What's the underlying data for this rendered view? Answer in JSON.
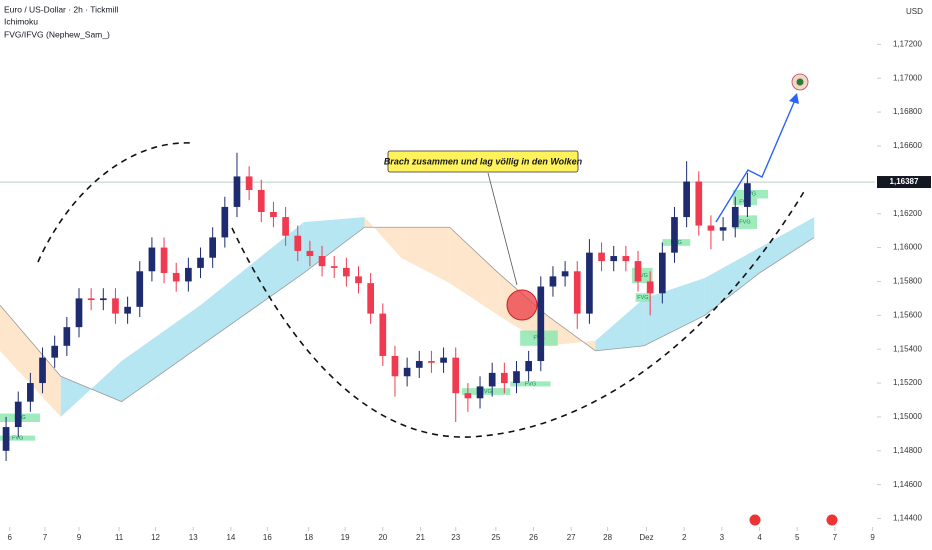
{
  "chart_data": {
    "type": "candlestick",
    "title": "Euro / US-Dollar · 2h · Tickmill",
    "indicators": [
      "Ichimoku",
      "FVG/IFVG (Nephew_Sam_)"
    ],
    "currency": "USD",
    "annotation": "Brach zusammen und lag völlig in den Wolken",
    "up_color": "#1e2b6e",
    "down_color": "#ef3a4f",
    "open": [
      1.148,
      1.1494,
      1.1509,
      1.152,
      1.1535,
      1.1542,
      1.1553,
      1.157,
      1.1569,
      1.157,
      1.1561,
      1.1565,
      1.1586,
      1.16,
      1.1585,
      1.158,
      1.1588,
      1.1594,
      1.1606,
      1.1624,
      1.1642,
      1.1634,
      1.1621,
      1.1618,
      1.1607,
      1.1598,
      1.1595,
      1.1589,
      1.1588,
      1.1583,
      1.1579,
      1.1561,
      1.1536,
      1.1524,
      1.1529,
      1.1533,
      1.1532,
      1.1535,
      1.1514,
      1.1511,
      1.1518,
      1.1526,
      1.152,
      1.1527,
      1.1533,
      1.1577,
      1.1583,
      1.1586,
      1.1561,
      1.1597,
      1.1592,
      1.1595,
      1.1592,
      1.158,
      1.1573,
      1.1597,
      1.1618,
      1.1639,
      1.1613,
      1.161,
      1.1612,
      1.1624
    ],
    "high": [
      1.15,
      1.1515,
      1.1526,
      1.1541,
      1.1548,
      1.1559,
      1.1576,
      1.1576,
      1.1576,
      1.1576,
      1.1571,
      1.1592,
      1.1606,
      1.1606,
      1.1591,
      1.1594,
      1.16,
      1.1612,
      1.163,
      1.1656,
      1.1648,
      1.164,
      1.1627,
      1.1624,
      1.1613,
      1.1604,
      1.1601,
      1.1595,
      1.1594,
      1.1589,
      1.1585,
      1.1567,
      1.1542,
      1.1535,
      1.1539,
      1.1539,
      1.1541,
      1.1541,
      1.152,
      1.1524,
      1.1532,
      1.1532,
      1.1533,
      1.1539,
      1.1583,
      1.1589,
      1.1592,
      1.1592,
      1.1605,
      1.1603,
      1.1601,
      1.1601,
      1.1598,
      1.1586,
      1.1603,
      1.1624,
      1.1651,
      1.1645,
      1.1619,
      1.1618,
      1.163,
      1.1644
    ],
    "low": [
      1.1474,
      1.1488,
      1.1503,
      1.1514,
      1.1529,
      1.1536,
      1.1547,
      1.1563,
      1.1563,
      1.1555,
      1.1555,
      1.1559,
      1.158,
      1.1579,
      1.1574,
      1.1574,
      1.1582,
      1.1588,
      1.16,
      1.1618,
      1.1628,
      1.1615,
      1.1612,
      1.1601,
      1.1592,
      1.1589,
      1.1583,
      1.1582,
      1.1577,
      1.1573,
      1.1555,
      1.153,
      1.1512,
      1.1518,
      1.1523,
      1.1526,
      1.1526,
      1.1497,
      1.1503,
      1.1505,
      1.1512,
      1.1514,
      1.1514,
      1.1521,
      1.1527,
      1.1571,
      1.1577,
      1.1552,
      1.1555,
      1.1586,
      1.1586,
      1.1586,
      1.1574,
      1.156,
      1.1567,
      1.1591,
      1.1612,
      1.1607,
      1.1599,
      1.1604,
      1.1606,
      1.1618
    ],
    "close": [
      1.1494,
      1.1509,
      1.152,
      1.1535,
      1.1542,
      1.1553,
      1.157,
      1.1569,
      1.157,
      1.1561,
      1.1565,
      1.1586,
      1.16,
      1.1585,
      1.158,
      1.1588,
      1.1594,
      1.1606,
      1.1624,
      1.1642,
      1.1634,
      1.1621,
      1.1618,
      1.1607,
      1.1598,
      1.1595,
      1.1589,
      1.1588,
      1.1583,
      1.1579,
      1.1561,
      1.1536,
      1.1524,
      1.1529,
      1.1533,
      1.1532,
      1.1535,
      1.1514,
      1.1511,
      1.1518,
      1.1526,
      1.152,
      1.1527,
      1.1533,
      1.1577,
      1.1583,
      1.1586,
      1.1561,
      1.1597,
      1.1592,
      1.1595,
      1.1592,
      1.158,
      1.1573,
      1.1597,
      1.1618,
      1.1639,
      1.1613,
      1.161,
      1.1612,
      1.1624,
      1.1638
    ],
    "cloud": {
      "x": [
        0,
        5,
        10,
        16.5,
        25,
        30,
        33,
        37,
        41,
        45,
        49,
        53,
        58,
        62.5,
        67
      ],
      "span_a": [
        1.1539,
        1.15,
        1.1533,
        1.1566,
        1.1615,
        1.1618,
        1.1594,
        1.1579,
        1.156,
        1.1542,
        1.1545,
        1.157,
        1.1582,
        1.16,
        1.1618
      ],
      "span_b": [
        1.1566,
        1.1524,
        1.1509,
        1.1542,
        1.1585,
        1.1612,
        1.1612,
        1.1612,
        1.1585,
        1.156,
        1.1539,
        1.1542,
        1.156,
        1.1585,
        1.1606
      ],
      "bull_color": "#b5e6f2",
      "bear_color": "#fde6cb",
      "line_color": "#9a9a9a"
    },
    "fvg_color": "#8ee8b2",
    "fvg": [
      {
        "label": "FVG",
        "x": [
          0,
          3.3
        ],
        "top": 1.1502,
        "bottom": 1.1497
      },
      {
        "label": "FVG",
        "x": [
          0,
          2.9
        ],
        "top": 1.1489,
        "bottom": 1.1486
      },
      {
        "label": "FVG",
        "x": [
          38,
          42
        ],
        "top": 1.1517,
        "bottom": 1.1513
      },
      {
        "label": "FVG",
        "x": [
          42,
          45.3
        ],
        "top": 1.1521,
        "bottom": 1.1518
      },
      {
        "label": "FVG",
        "x": [
          42.8,
          45.9
        ],
        "top": 1.1551,
        "bottom": 1.1542
      },
      {
        "label": "FVG",
        "x": [
          52,
          53.7
        ],
        "top": 1.1588,
        "bottom": 1.1579
      },
      {
        "label": "FVG",
        "x": [
          52.3,
          53.5
        ],
        "top": 1.1573,
        "bottom": 1.1568
      },
      {
        "label": "FVG",
        "x": [
          54.5,
          56.8
        ],
        "top": 1.1605,
        "bottom": 1.1601
      },
      {
        "label": "FVG",
        "x": [
          60.3,
          63.2
        ],
        "top": 1.1634,
        "bottom": 1.1629
      },
      {
        "label": "FVG",
        "x": [
          60.3,
          62.3
        ],
        "top": 1.1629,
        "bottom": 1.1625
      },
      {
        "label": "FVG",
        "x": [
          60.3,
          62.3
        ],
        "top": 1.1619,
        "bottom": 1.1611
      }
    ],
    "last_price": {
      "value": 1.16387,
      "label": "1,16387"
    },
    "xlim": [
      0,
      72
    ],
    "xticks": [
      {
        "value": 0.8,
        "label": "6"
      },
      {
        "value": 3.7,
        "label": "7"
      },
      {
        "value": 6.5,
        "label": "9"
      },
      {
        "value": 9.8,
        "label": "11"
      },
      {
        "value": 12.8,
        "label": "12"
      },
      {
        "value": 15.9,
        "label": "13"
      },
      {
        "value": 19,
        "label": "14"
      },
      {
        "value": 22,
        "label": "16"
      },
      {
        "value": 25.4,
        "label": "18"
      },
      {
        "value": 28.4,
        "label": "19"
      },
      {
        "value": 31.5,
        "label": "20"
      },
      {
        "value": 34.6,
        "label": "21"
      },
      {
        "value": 37.5,
        "label": "23"
      },
      {
        "value": 40.8,
        "label": "25"
      },
      {
        "value": 43.9,
        "label": "26"
      },
      {
        "value": 47,
        "label": "27"
      },
      {
        "value": 50,
        "label": "28"
      },
      {
        "value": 53.2,
        "label": "Dez"
      },
      {
        "value": 56.3,
        "label": "2"
      },
      {
        "value": 59.4,
        "label": "3"
      },
      {
        "value": 62.5,
        "label": "4"
      },
      {
        "value": 65.6,
        "label": "5"
      },
      {
        "value": 68.7,
        "label": "7"
      },
      {
        "value": 71.8,
        "label": "9"
      }
    ],
    "ylim": [
      1.1435,
      1.1745
    ],
    "yticks": [
      {
        "value": 1.144,
        "label": "1,14400"
      },
      {
        "value": 1.146,
        "label": "1,14600"
      },
      {
        "value": 1.148,
        "label": "1,14800"
      },
      {
        "value": 1.15,
        "label": "1,15000"
      },
      {
        "value": 1.152,
        "label": "1,15200"
      },
      {
        "value": 1.154,
        "label": "1,15400"
      },
      {
        "value": 1.156,
        "label": "1,15600"
      },
      {
        "value": 1.158,
        "label": "1,15800"
      },
      {
        "value": 1.16,
        "label": "1,16000"
      },
      {
        "value": 1.162,
        "label": "1,16200"
      },
      {
        "value": 1.164,
        "label": "1,16400"
      },
      {
        "value": 1.166,
        "label": "1,16600"
      },
      {
        "value": 1.168,
        "label": "1,16800"
      },
      {
        "value": 1.17,
        "label": "1,17000"
      },
      {
        "value": 1.172,
        "label": "1,17200"
      }
    ]
  }
}
